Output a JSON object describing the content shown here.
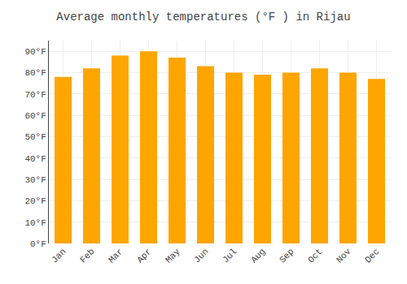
{
  "chart_data": {
    "type": "bar",
    "title": "Average monthly temperatures (°F ) in Rijau",
    "categories": [
      "Jan",
      "Feb",
      "Mar",
      "Apr",
      "May",
      "Jun",
      "Jul",
      "Aug",
      "Sep",
      "Oct",
      "Nov",
      "Dec"
    ],
    "values": [
      78,
      82,
      88,
      90,
      87,
      83,
      80,
      79,
      80,
      82,
      80,
      77
    ],
    "color": "#FFA500",
    "ylim": [
      0,
      95
    ],
    "yticks": [
      {
        "value": 0,
        "label": "0°F"
      },
      {
        "value": 10,
        "label": "10°F"
      },
      {
        "value": 20,
        "label": "20°F"
      },
      {
        "value": 30,
        "label": "30°F"
      },
      {
        "value": 40,
        "label": "40°F"
      },
      {
        "value": 50,
        "label": "50°F"
      },
      {
        "value": 60,
        "label": "60°F"
      },
      {
        "value": 70,
        "label": "70°F"
      },
      {
        "value": 80,
        "label": "80°F"
      },
      {
        "value": 90,
        "label": "90°F"
      }
    ],
    "grid": true
  }
}
